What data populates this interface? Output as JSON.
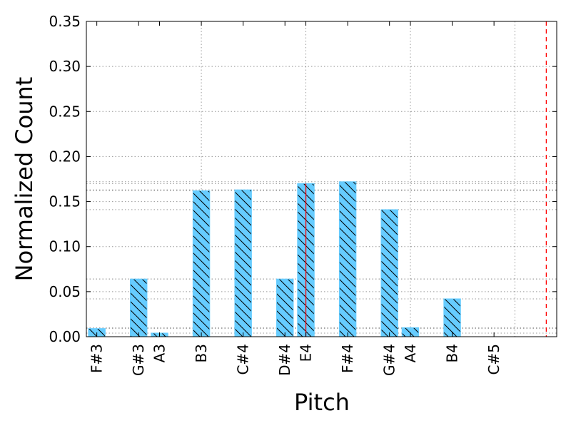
{
  "chart_data": {
    "type": "bar",
    "title": "",
    "xlabel": "Pitch",
    "ylabel": "Normalized Count",
    "ylim": [
      0,
      0.35
    ],
    "yticks": [
      "0.00",
      "0.05",
      "0.10",
      "0.15",
      "0.20",
      "0.25",
      "0.30",
      "0.35"
    ],
    "xlim": [
      53.5,
      76
    ],
    "grid": true,
    "hatch": "\\",
    "bar_color": "#66ccff",
    "categories": [
      "F#3",
      "G#3",
      "A3",
      "B3",
      "C#4",
      "D#4",
      "E4",
      "F#4",
      "G#4",
      "A4",
      "B4",
      "C#5"
    ],
    "semitone_index": [
      54,
      56,
      57,
      59,
      61,
      63,
      64,
      66,
      68,
      69,
      71,
      73
    ],
    "values": [
      0.009,
      0.064,
      0.004,
      0.162,
      0.163,
      0.064,
      0.17,
      0.172,
      0.141,
      0.01,
      0.042,
      0.0
    ],
    "tick_label_positions": [
      54,
      56,
      57,
      59,
      61,
      63,
      64,
      66,
      68,
      69,
      71,
      73
    ],
    "vertical_grid_at": [
      59,
      64,
      69,
      74
    ],
    "reference_lines": [
      {
        "x": 64,
        "style": "solid",
        "color": "#ff0000",
        "ymax": 0.17
      },
      {
        "x": 75.5,
        "style": "dashed",
        "color": "#ff0000"
      }
    ]
  }
}
